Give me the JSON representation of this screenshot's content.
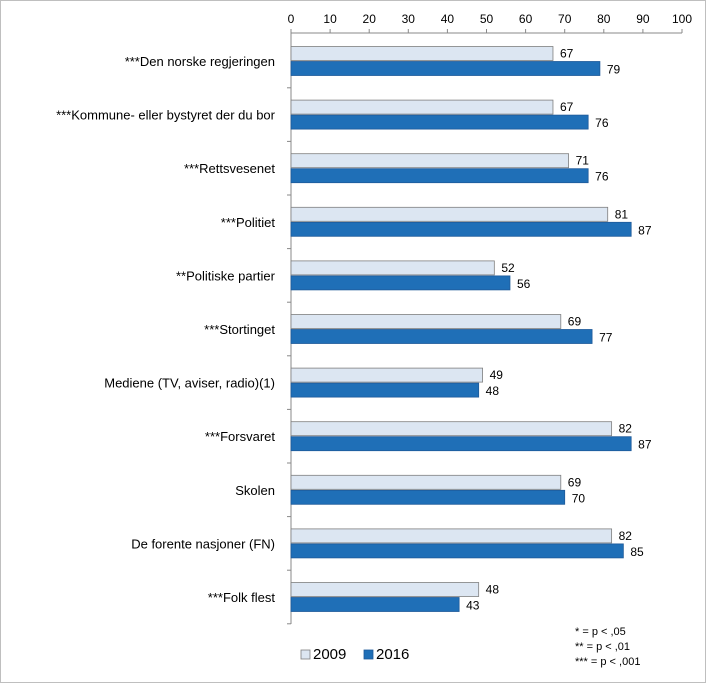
{
  "chart_data": {
    "type": "bar",
    "orientation": "horizontal",
    "title": "",
    "xlabel": "",
    "ylabel": "",
    "xlim": [
      0,
      100
    ],
    "x_ticks": [
      0,
      10,
      20,
      30,
      40,
      50,
      60,
      70,
      80,
      90,
      100
    ],
    "grid": false,
    "legend_position": "bottom-left",
    "categories": [
      "***Den norske regjeringen",
      "***Kommune- eller bystyret der du bor",
      "***Rettsvesenet",
      "***Politiet",
      "**Politiske partier",
      "***Stortinget",
      "Mediene (TV, aviser, radio)(1)",
      "***Forsvaret",
      "Skolen",
      "De forente nasjoner (FN)",
      "***Folk flest"
    ],
    "series": [
      {
        "name": "2009",
        "color": "#dce6f2",
        "stroke": "#7f7f7f",
        "values": [
          67,
          67,
          71,
          81,
          52,
          69,
          49,
          82,
          69,
          82,
          48
        ]
      },
      {
        "name": "2016",
        "color": "#1f6fb7",
        "stroke": "#1f5a99",
        "values": [
          79,
          76,
          76,
          87,
          56,
          77,
          48,
          87,
          70,
          85,
          43
        ]
      }
    ],
    "notes": [
      "* = p < ,05",
      "** = p < ,01",
      "*** = p < ,001"
    ]
  }
}
